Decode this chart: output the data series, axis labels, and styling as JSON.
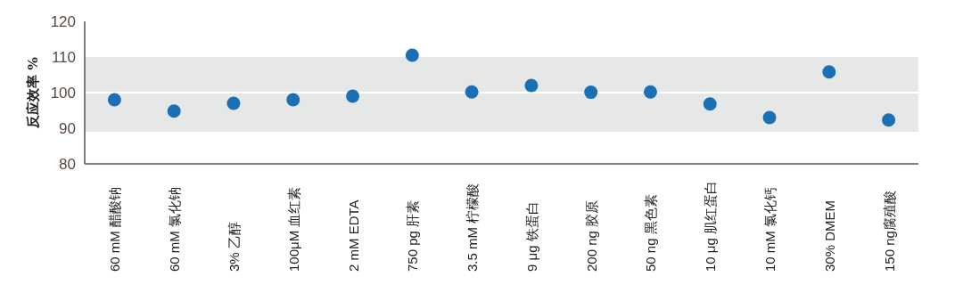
{
  "chart_data": {
    "type": "scatter",
    "ylabel": "反应效率 %",
    "categories": [
      "60 mM 醋酸钠",
      "60 mM 氯化钠",
      "3% 乙醇",
      "100μM 血红素",
      "2 mM EDTA",
      "750 pg 肝素",
      "3.5 mM 柠檬酸",
      "9 μg  铁蛋白",
      "200 ng 胶原",
      "50 ng 黑色素",
      "10 μg 肌红蛋白",
      "10 mM 氯化钙",
      "30% DMEM",
      "150 ng腐殖酸"
    ],
    "series": [
      {
        "color": "#1a6fb5",
        "values": [
          98,
          94.8,
          97,
          98,
          99,
          110.5,
          100.2,
          102,
          100.1,
          100.2,
          96.8,
          93,
          105.8,
          92.3
        ]
      }
    ],
    "ylim": [
      80,
      120
    ],
    "yticks": [
      80,
      90,
      100,
      110,
      120
    ],
    "bands": [
      {
        "axis": "y",
        "from": 89,
        "to": 110,
        "color": "#e6e7e7"
      }
    ],
    "ref_lines": [
      {
        "axis": "y",
        "value": 100,
        "color": "#ffffff"
      }
    ],
    "marker": "circle",
    "grid": false
  }
}
